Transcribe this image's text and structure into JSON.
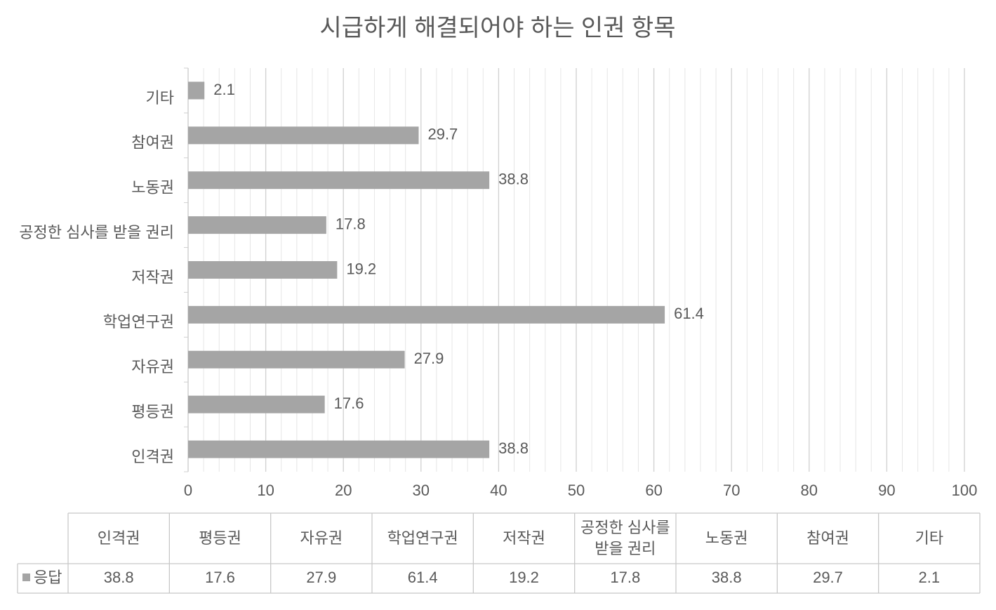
{
  "chart_data": {
    "type": "bar",
    "orientation": "horizontal",
    "title": "시급하게 해결되어야 하는 인권 항목",
    "categories": [
      "인격권",
      "평등권",
      "자유권",
      "학업연구권",
      "저작권",
      "공정한 심사를 받을 권리",
      "노동권",
      "참여권",
      "기타"
    ],
    "series": [
      {
        "name": "응답",
        "color": "#a5a5a5",
        "values": [
          38.8,
          17.6,
          27.9,
          61.4,
          19.2,
          17.8,
          38.8,
          29.7,
          2.1
        ]
      }
    ],
    "xlim": [
      0,
      100
    ],
    "xticks": [
      0,
      10,
      20,
      30,
      40,
      50,
      60,
      70,
      80,
      90,
      100
    ],
    "grid": true,
    "minor_grid": true,
    "data_table": true
  }
}
